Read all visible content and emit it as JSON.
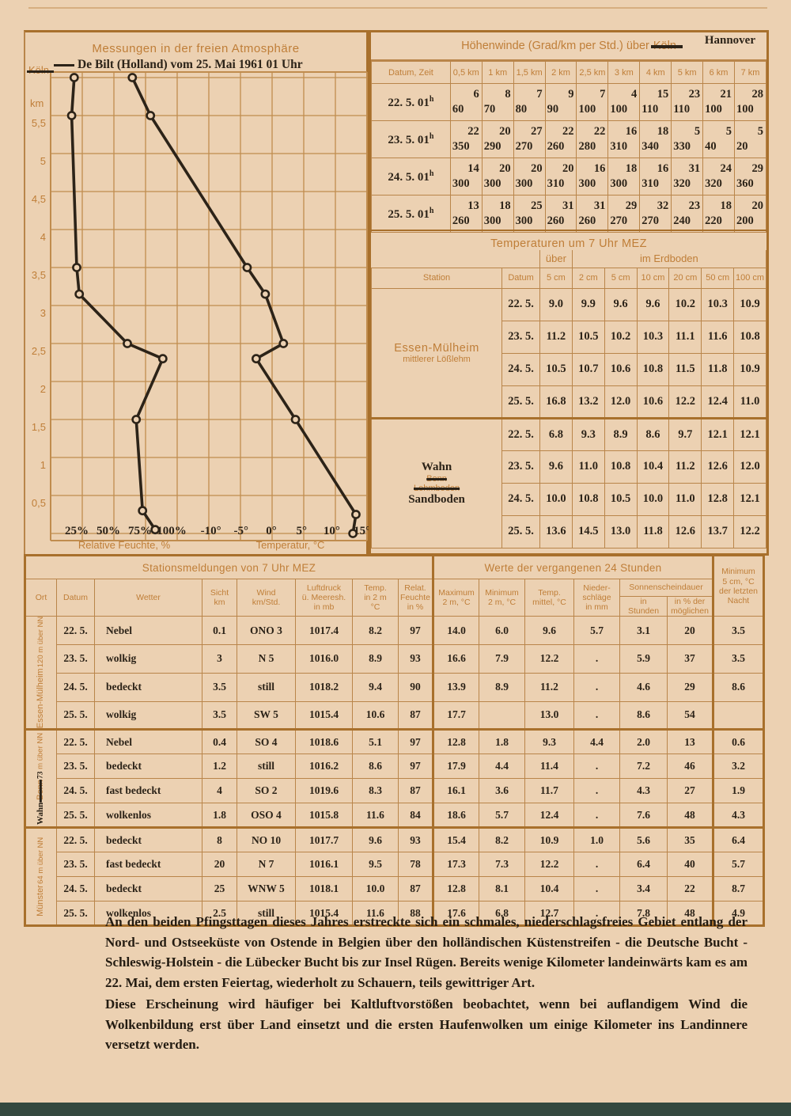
{
  "chart_data": {
    "type": "line",
    "title": "Messungen in der freien Atmosphäre",
    "station_note": "De Bilt (Holland) vom 25. Mai 1961 01 Uhr",
    "struck_station": "Köln",
    "ylabel": "km",
    "y_ticks": [
      "5,5",
      "5",
      "4,5",
      "4",
      "3,5",
      "3",
      "2,5",
      "2",
      "1,5",
      "1",
      "0,5"
    ],
    "y_tick_values": [
      5.5,
      5,
      4.5,
      4,
      3.5,
      3,
      2.5,
      2,
      1.5,
      1,
      0.5
    ],
    "ylim": [
      0,
      6
    ],
    "grid": true,
    "x_axes": [
      {
        "label": "Relative Feuchte, %",
        "ticks": [
          "25%",
          "50%",
          "75%",
          "100%"
        ],
        "tick_values": [
          25,
          50,
          75,
          100
        ]
      },
      {
        "label": "Temperatur, °C",
        "ticks": [
          "-10°",
          "-5°",
          "0°",
          "5°",
          "10°",
          "15°"
        ],
        "tick_values": [
          -10,
          -5,
          0,
          5,
          10,
          15
        ]
      }
    ],
    "series": [
      {
        "name": "Relative Feuchte",
        "unit": "%",
        "points_km_value": [
          [
            6.0,
            23
          ],
          [
            5.5,
            21
          ],
          [
            3.5,
            25
          ],
          [
            3.15,
            27
          ],
          [
            2.5,
            65
          ],
          [
            2.3,
            93
          ],
          [
            1.5,
            72
          ],
          [
            0.3,
            77
          ],
          [
            0.05,
            87
          ]
        ]
      },
      {
        "name": "Temperatur",
        "unit": "°C",
        "points_km_value": [
          [
            6.0,
            -23
          ],
          [
            5.5,
            -20
          ],
          [
            3.5,
            -4
          ],
          [
            3.15,
            -1
          ],
          [
            2.5,
            2
          ],
          [
            2.3,
            -2.5
          ],
          [
            1.5,
            4
          ],
          [
            0.25,
            14
          ],
          [
            0.0,
            13.5
          ]
        ]
      }
    ]
  },
  "hoehenwinde": {
    "title_prefix": "Höhenwinde (Grad/km per Std.) über",
    "struck": "Köln",
    "replacement": "Hannover",
    "datum_header": "Datum, Zeit",
    "columns": [
      "0,5 km",
      "1 km",
      "1,5 km",
      "2 km",
      "2,5 km",
      "3 km",
      "4 km",
      "5 km",
      "6 km",
      "7 km"
    ],
    "rows": [
      {
        "datum": "22. 5.",
        "zeit": "01",
        "zeit_sup": "h",
        "cells": [
          [
            60,
            6
          ],
          [
            70,
            8
          ],
          [
            80,
            7
          ],
          [
            90,
            9
          ],
          [
            100,
            7
          ],
          [
            100,
            4
          ],
          [
            110,
            15
          ],
          [
            110,
            23
          ],
          [
            100,
            21
          ],
          [
            100,
            28
          ]
        ]
      },
      {
        "datum": "23. 5.",
        "zeit": "01",
        "zeit_sup": "h",
        "cells": [
          [
            350,
            22
          ],
          [
            290,
            20
          ],
          [
            270,
            27
          ],
          [
            260,
            22
          ],
          [
            280,
            22
          ],
          [
            310,
            16
          ],
          [
            340,
            18
          ],
          [
            330,
            5
          ],
          [
            40,
            5
          ],
          [
            20,
            5
          ]
        ]
      },
      {
        "datum": "24. 5.",
        "zeit": "01",
        "zeit_sup": "h",
        "cells": [
          [
            300,
            14
          ],
          [
            300,
            20
          ],
          [
            300,
            20
          ],
          [
            310,
            20
          ],
          [
            300,
            16
          ],
          [
            300,
            18
          ],
          [
            310,
            16
          ],
          [
            320,
            31
          ],
          [
            320,
            24
          ],
          [
            360,
            29
          ]
        ]
      },
      {
        "datum": "25. 5.",
        "zeit": "01",
        "zeit_sup": "h",
        "cells": [
          [
            260,
            13
          ],
          [
            300,
            18
          ],
          [
            300,
            25
          ],
          [
            260,
            31
          ],
          [
            260,
            31
          ],
          [
            270,
            29
          ],
          [
            270,
            32
          ],
          [
            240,
            23
          ],
          [
            220,
            18
          ],
          [
            200,
            20
          ]
        ]
      }
    ]
  },
  "temperaturen": {
    "title": "Temperaturen um 7 Uhr MEZ",
    "ueber": "über",
    "erdboden": "im Erdboden",
    "station_header": "Station",
    "datum_header": "Datum",
    "depth_columns": [
      "5 cm",
      "2 cm",
      "5 cm",
      "10 cm",
      "20 cm",
      "50 cm",
      "100 cm"
    ],
    "groups": [
      {
        "station": {
          "name": "Essen-Mülheim",
          "sub": "mittlerer Lößlehm"
        },
        "rows": [
          {
            "datum": "22. 5.",
            "values": [
              "9.0",
              "9.9",
              "9.6",
              "9.6",
              "10.2",
              "10.3",
              "10.9"
            ]
          },
          {
            "datum": "23. 5.",
            "values": [
              "11.2",
              "10.5",
              "10.2",
              "10.3",
              "11.1",
              "11.6",
              "10.8"
            ]
          },
          {
            "datum": "24. 5.",
            "values": [
              "10.5",
              "10.7",
              "10.6",
              "10.8",
              "11.5",
              "11.8",
              "10.9"
            ]
          },
          {
            "datum": "25. 5.",
            "values": [
              "16.8",
              "13.2",
              "12.0",
              "10.6",
              "12.2",
              "12.4",
              "11.0"
            ]
          }
        ]
      },
      {
        "station": {
          "hand": "Wahn",
          "struck1": "Bonn",
          "struck2": "Lehmboden",
          "hand2": "Sandboden"
        },
        "rows": [
          {
            "datum": "22. 5.",
            "values": [
              "6.8",
              "9.3",
              "8.9",
              "8.6",
              "9.7",
              "12.1",
              "12.1"
            ]
          },
          {
            "datum": "23. 5.",
            "values": [
              "9.6",
              "11.0",
              "10.8",
              "10.4",
              "11.2",
              "12.6",
              "12.0"
            ]
          },
          {
            "datum": "24. 5.",
            "values": [
              "10.0",
              "10.8",
              "10.5",
              "10.0",
              "11.0",
              "12.8",
              "12.1"
            ]
          },
          {
            "datum": "25. 5.",
            "values": [
              "13.6",
              "14.5",
              "13.0",
              "11.8",
              "12.6",
              "13.7",
              "12.2"
            ]
          }
        ]
      }
    ]
  },
  "bottom_table": {
    "left_title": "Stationsmeldungen von 7 Uhr MEZ",
    "right_title": "Werte der vergangenen 24 Stunden",
    "headers_left": [
      "Ort",
      "Datum",
      "Wetter",
      "Sicht\nkm",
      "Wind\nkm/Std.",
      "Luftdruck\nü. Meeresh.\nin mb",
      "Temp.\nin 2 m\n°C",
      "Relat.\nFeuchte\nin %"
    ],
    "headers_right": [
      "Maximum\n2 m, °C",
      "Minimum\n2 m, °C",
      "Temp.\nmittel, °C",
      "Nieder-\nschläge\nin mm"
    ],
    "sonnen_group": "Sonnenscheindauer",
    "sonnen_sub": [
      "in\nStunden",
      "in % der\nmöglichen"
    ],
    "min5_header": "Minimum\n5 cm, °C\nder letzten\nNacht",
    "stations": [
      {
        "ort": {
          "name": "Essen-Mülheim",
          "alt": "120 m über NN"
        },
        "rows": [
          {
            "datum": "22. 5.",
            "wetter": "Nebel",
            "sicht": "0.1",
            "wind": "ONO 3",
            "druck": "1017.4",
            "temp": "8.2",
            "feuchte": "97",
            "max": "14.0",
            "min": "6.0",
            "mittel": "9.6",
            "nieder": "5.7",
            "sonne_h": "3.1",
            "sonne_pct": "20",
            "min5": "3.5"
          },
          {
            "datum": "23. 5.",
            "wetter": "wolkig",
            "sicht": "3",
            "wind": "N  5",
            "druck": "1016.0",
            "temp": "8.9",
            "feuchte": "93",
            "max": "16.6",
            "min": "7.9",
            "mittel": "12.2",
            "nieder": ".",
            "sonne_h": "5.9",
            "sonne_pct": "37",
            "min5": "3.5"
          },
          {
            "datum": "24. 5.",
            "wetter": "bedeckt",
            "sicht": "3.5",
            "wind": "still",
            "druck": "1018.2",
            "temp": "9.4",
            "feuchte": "90",
            "max": "13.9",
            "min": "8.9",
            "mittel": "11.2",
            "nieder": ".",
            "sonne_h": "4.6",
            "sonne_pct": "29",
            "min5": "8.6"
          },
          {
            "datum": "25. 5.",
            "wetter": "wolkig",
            "sicht": "3.5",
            "wind": "SW  5",
            "druck": "1015.4",
            "temp": "10.6",
            "feuchte": "87",
            "max": "17.7",
            "min": "",
            "mittel": "13.0",
            "nieder": ".",
            "sonne_h": "8.6",
            "sonne_pct": "54",
            "min5": ""
          }
        ]
      },
      {
        "ort": {
          "hand": "Wahn",
          "struck": "Bonn",
          "alt_hand": "73",
          "alt": "m über NN"
        },
        "rows": [
          {
            "datum": "22. 5.",
            "wetter": "Nebel",
            "sicht": "0.4",
            "wind": "SO  4",
            "druck": "1018.6",
            "temp": "5.1",
            "feuchte": "97",
            "max": "12.8",
            "min": "1.8",
            "mittel": "9.3",
            "nieder": "4.4",
            "sonne_h": "2.0",
            "sonne_pct": "13",
            "min5": "0.6"
          },
          {
            "datum": "23. 5.",
            "wetter": "bedeckt",
            "sicht": "1.2",
            "wind": "still",
            "druck": "1016.2",
            "temp": "8.6",
            "feuchte": "97",
            "max": "17.9",
            "min": "4.4",
            "mittel": "11.4",
            "nieder": ".",
            "sonne_h": "7.2",
            "sonne_pct": "46",
            "min5": "3.2"
          },
          {
            "datum": "24. 5.",
            "wetter": "fast bedeckt",
            "sicht": "4",
            "wind": "SO  2",
            "druck": "1019.6",
            "temp": "8.3",
            "feuchte": "87",
            "max": "16.1",
            "min": "3.6",
            "mittel": "11.7",
            "nieder": ".",
            "sonne_h": "4.3",
            "sonne_pct": "27",
            "min5": "1.9"
          },
          {
            "datum": "25. 5.",
            "wetter": "wolkenlos",
            "sicht": "1.8",
            "wind": "OSO 4",
            "druck": "1015.8",
            "temp": "11.6",
            "feuchte": "84",
            "max": "18.6",
            "min": "5.7",
            "mittel": "12.4",
            "nieder": ".",
            "sonne_h": "7.6",
            "sonne_pct": "48",
            "min5": "4.3"
          }
        ]
      },
      {
        "ort": {
          "name": "Münster",
          "alt": "64 m über NN"
        },
        "rows": [
          {
            "datum": "22. 5.",
            "wetter": "bedeckt",
            "sicht": "8",
            "wind": "NO  10",
            "druck": "1017.7",
            "temp": "9.6",
            "feuchte": "93",
            "max": "15.4",
            "min": "8.2",
            "mittel": "10.9",
            "nieder": "1.0",
            "sonne_h": "5.6",
            "sonne_pct": "35",
            "min5": "6.4"
          },
          {
            "datum": "23. 5.",
            "wetter": "fast bedeckt",
            "sicht": "20",
            "wind": "N  7",
            "druck": "1016.1",
            "temp": "9.5",
            "feuchte": "78",
            "max": "17.3",
            "min": "7.3",
            "mittel": "12.2",
            "nieder": ".",
            "sonne_h": "6.4",
            "sonne_pct": "40",
            "min5": "5.7"
          },
          {
            "datum": "24. 5.",
            "wetter": "bedeckt",
            "sicht": "25",
            "wind": "WNW 5",
            "druck": "1018.1",
            "temp": "10.0",
            "feuchte": "87",
            "max": "12.8",
            "min": "8.1",
            "mittel": "10.4",
            "nieder": ".",
            "sonne_h": "3.4",
            "sonne_pct": "22",
            "min5": "8.7"
          },
          {
            "datum": "25. 5.",
            "wetter": "wolkenlos",
            "sicht": "2.5",
            "wind": "still",
            "druck": "1015.4",
            "temp": "11.6",
            "feuchte": "88",
            "max": "17.6",
            "min": "6.8",
            "mittel": "12.7",
            "nieder": ".",
            "sonne_h": "7.8",
            "sonne_pct": "48",
            "min5": "4.9"
          }
        ]
      }
    ]
  },
  "text": {
    "paragraph1": "An den beiden Pfingsttagen dieses Jahres erstreckte sich ein schmales, niederschlagsfreies Gebiet entlang der Nord- und Ostseeküste von Ostende in Belgien über den holländischen Küstenstreifen - die Deutsche Bucht - Schleswig-Holstein - die Lübecker Bucht bis zur Insel Rügen. Bereits wenige Kilometer landeinwärts kam es am 22. Mai, dem ersten Feiertag, wiederholt zu Schauern, teils gewittriger Art.",
    "paragraph2": "Diese Erscheinung wird häufiger bei Kaltluftvorstößen beobachtet, wenn bei auflandigem Wind die Wolkenbildung erst über Land einsetzt und die ersten Haufenwolken um einige Kilometer ins Landinnere versetzt werden."
  },
  "colors": {
    "paper": "#ecd1b2",
    "orange_text": "#bf7e38",
    "line_thick": "#a8702c",
    "line_thin": "#c08c4e",
    "typed_dark": "#2c2318",
    "footer_bar": "#34493f"
  }
}
